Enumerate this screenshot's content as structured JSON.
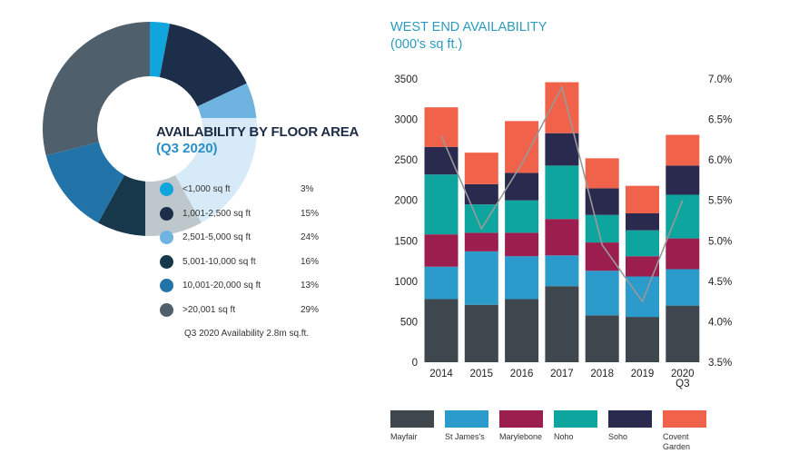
{
  "donut": {
    "title": "AVAILABILITY BY FLOOR AREA",
    "subtitle": "(Q3 2020)",
    "note": "Q3 2020 Availability 2.8m sq.ft.",
    "items": [
      {
        "label": "<1,000 sq ft",
        "pct_label": "3%",
        "value": 3,
        "color": "#11a5de"
      },
      {
        "label": "1,001-2,500 sq ft",
        "pct_label": "15%",
        "value": 15,
        "color": "#1c2e4a"
      },
      {
        "label": "2,501-5,000 sq ft",
        "pct_label": "24%",
        "value": 24,
        "color": "#6fb4e0"
      },
      {
        "label": "5,001-10,000 sq ft",
        "pct_label": "16%",
        "value": 16,
        "color": "#16384a"
      },
      {
        "label": "10,001-20,000 sq ft",
        "pct_label": "13%",
        "value": 13,
        "color": "#2273a8"
      },
      {
        "label": ">20,001 sq ft",
        "pct_label": "29%",
        "value": 29,
        "color": "#4f5f6b"
      }
    ]
  },
  "chart_data": {
    "type": "bar",
    "stacked": true,
    "title": "WEST END AVAILABILITY",
    "subtitle": "(000's sq ft.)",
    "categories": [
      "2014",
      "2015",
      "2016",
      "2017",
      "2018",
      "2019",
      "2020\nQ3"
    ],
    "ylim": [
      0,
      3500
    ],
    "yticks": [
      0,
      500,
      1000,
      1500,
      2000,
      2500,
      3000,
      3500
    ],
    "y2lim": [
      3.5,
      7.0
    ],
    "y2ticks": [
      "3.5%",
      "4.0%",
      "4.5%",
      "5.0%",
      "5.5%",
      "6.0%",
      "6.5%",
      "7.0%"
    ],
    "series": [
      {
        "name": "Mayfair",
        "color": "#3e464e",
        "values": [
          780,
          710,
          780,
          940,
          580,
          560,
          700
        ]
      },
      {
        "name": "St James's",
        "color": "#2b9bcc",
        "values": [
          400,
          660,
          530,
          380,
          550,
          500,
          450
        ]
      },
      {
        "name": "Marylebone",
        "color": "#9c1e4f",
        "values": [
          400,
          230,
          290,
          450,
          350,
          250,
          380
        ]
      },
      {
        "name": "Noho",
        "color": "#0fa59f",
        "values": [
          740,
          350,
          400,
          660,
          340,
          320,
          540
        ]
      },
      {
        "name": "Soho",
        "color": "#2a2a4e",
        "values": [
          340,
          250,
          340,
          400,
          330,
          210,
          360
        ]
      },
      {
        "name": "Covent\nGarden",
        "color": "#f0624a",
        "values": [
          490,
          390,
          640,
          630,
          370,
          340,
          380
        ]
      }
    ],
    "line": {
      "color": "#999999",
      "values": [
        6.3,
        5.15,
        5.95,
        6.9,
        4.95,
        4.25,
        5.5
      ]
    },
    "grid": false,
    "legend_position": "bottom"
  }
}
